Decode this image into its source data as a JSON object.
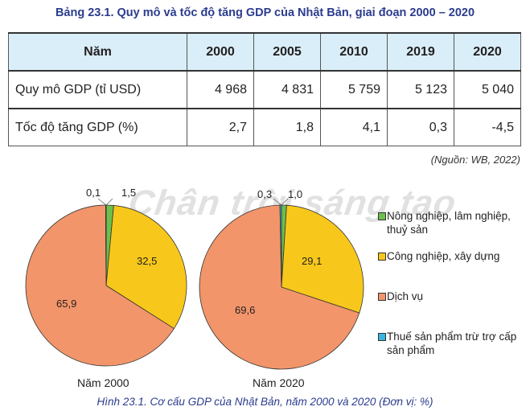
{
  "table": {
    "title": "Bảng 23.1. Quy mô và tốc độ tăng GDP của Nhật Bản, giai đoạn 2000 – 2020",
    "headers": [
      "Năm",
      "2000",
      "2005",
      "2010",
      "2019",
      "2020"
    ],
    "rows": [
      [
        "Quy mô GDP (tỉ USD)",
        "4 968",
        "4 831",
        "5 759",
        "5 123",
        "5 040"
      ],
      [
        "Tốc độ tăng GDP  (%)",
        "2,7",
        "1,8",
        "4,1",
        "0,3",
        "-4,5"
      ]
    ],
    "source": "(Nguồn: WB, 2022)"
  },
  "watermark": "Chân trời sáng tạo",
  "chart_data": {
    "type": "pie",
    "title": "Hình 23.1. Cơ cấu GDP của Nhật Bản, năm 2000 và 2020 (Đơn vị: %)",
    "categories": [
      "Nông nghiệp, lâm nghiệp, thuỷ sản",
      "Công nghiệp, xây dựng",
      "Dịch vụ",
      "Thuế sản phẩm trừ trợ cấp sản phẩm"
    ],
    "colors": [
      "#6cbf4b",
      "#f7c81b",
      "#f2956a",
      "#3ab4e0"
    ],
    "legend_position": "right",
    "series": [
      {
        "name": "Năm 2000",
        "values": [
          1.5,
          32.5,
          65.9,
          0.1
        ],
        "labels": [
          "1,5",
          "32,5",
          "65,9",
          "0,1"
        ]
      },
      {
        "name": "Năm 2020",
        "values": [
          1.0,
          29.1,
          69.6,
          0.3
        ],
        "labels": [
          "1,0",
          "29,1",
          "69,6",
          "0,3"
        ]
      }
    ]
  }
}
